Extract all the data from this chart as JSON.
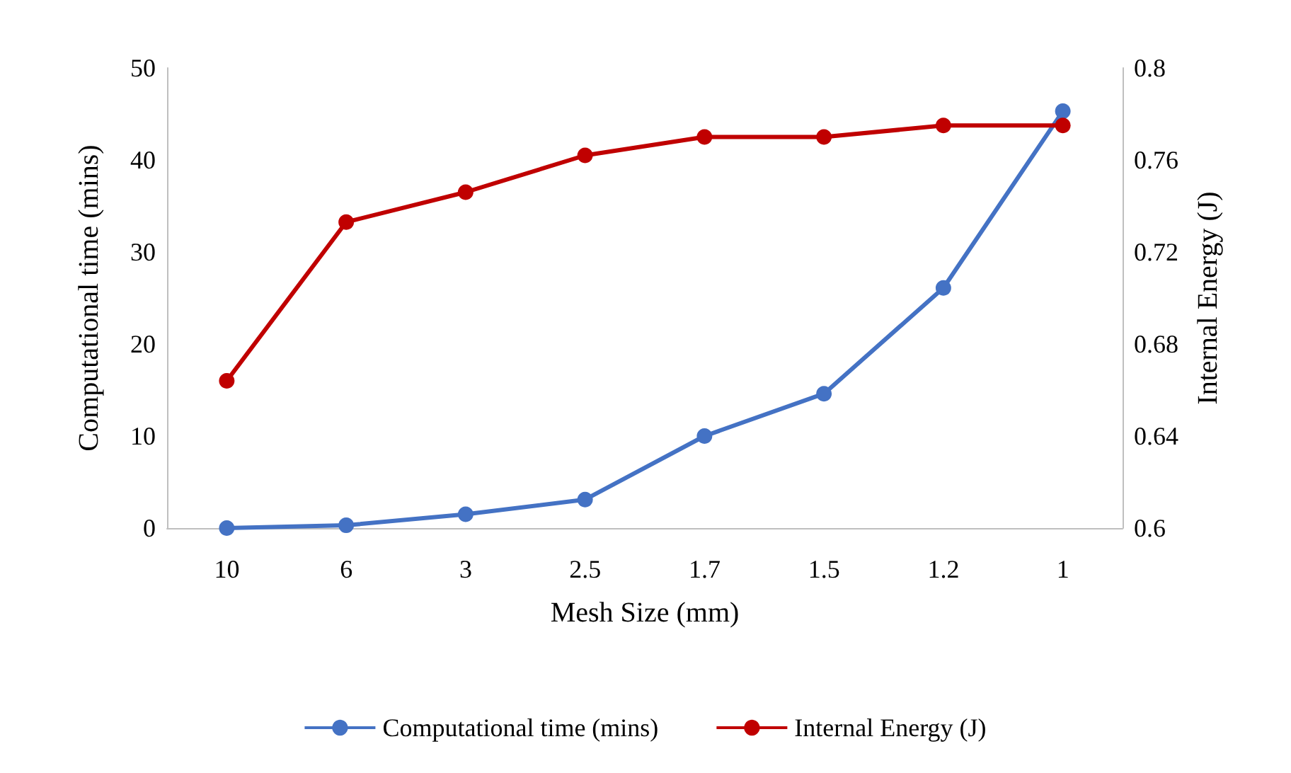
{
  "chart_data": {
    "type": "line",
    "xlabel": "Mesh Size (mm)",
    "ylabel": "Computational time (mins)",
    "y2label": "Internal Energy (J)",
    "categories": [
      "10",
      "6",
      "3",
      "2.5",
      "1.7",
      "1.5",
      "1.2",
      "1"
    ],
    "series": [
      {
        "name": "Computational time (mins)",
        "color": "#4472c4",
        "values": [
          0,
          0.3,
          1.5,
          3.1,
          10,
          14.6,
          26.1,
          45.3
        ]
      },
      {
        "name": "Internal Energy (J)",
        "color": "#c00000",
        "axis": "y2",
        "values": [
          0.664,
          0.733,
          0.746,
          0.762,
          0.77,
          0.77,
          0.775,
          0.775
        ]
      }
    ],
    "ylim": [
      0,
      50
    ],
    "yticks": [
      0,
      10,
      20,
      30,
      40,
      50
    ],
    "y2lim": [
      0.6,
      0.8
    ],
    "y2ticks": [
      0.6,
      0.64,
      0.68,
      0.72,
      0.76,
      0.8
    ],
    "legend": "bottom",
    "marker": "circle",
    "line_style": "solid",
    "grid": false
  }
}
